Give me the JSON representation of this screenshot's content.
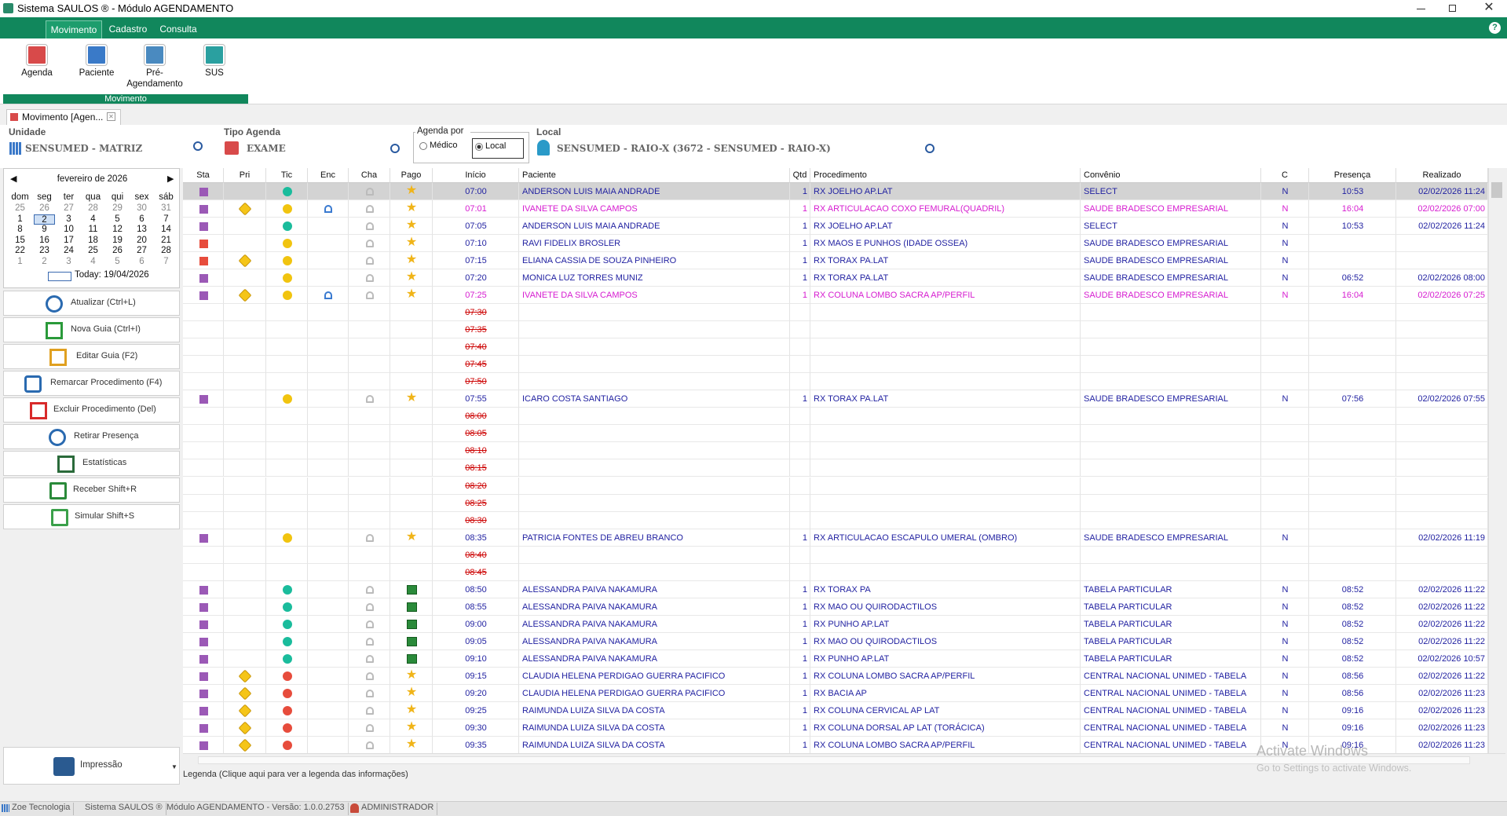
{
  "window": {
    "title": "Sistema SAULOS ® - Módulo AGENDAMENTO"
  },
  "menu": {
    "tabs": [
      "Movimento",
      "Cadastro",
      "Consulta"
    ],
    "selected": 0
  },
  "ribbon": {
    "buttons": [
      "Agenda",
      "Paciente",
      "Pré-Agendamento",
      "SUS"
    ],
    "group": "Movimento"
  },
  "tab": "Movimento [Agen...",
  "filters": {
    "unit_label": "Unidade",
    "unit": "SENSUMED - MATRIZ",
    "type_label": "Tipo Agenda",
    "type": "EXAME",
    "by_label": "Agenda por",
    "by_options": [
      "Médico",
      "Local"
    ],
    "by_selected": 1,
    "local_label": "Local",
    "local": "SENSUMED - RAIO-X (3672 - SENSUMED - RAIO-X)"
  },
  "calendar": {
    "month": "fevereiro de 2026",
    "weekdays": [
      "dom",
      "seg",
      "ter",
      "qua",
      "qui",
      "sex",
      "sáb"
    ],
    "weeks": [
      [
        25,
        26,
        27,
        28,
        29,
        30,
        31
      ],
      [
        1,
        2,
        3,
        4,
        5,
        6,
        7
      ],
      [
        8,
        9,
        10,
        11,
        12,
        13,
        14
      ],
      [
        15,
        16,
        17,
        18,
        19,
        20,
        21
      ],
      [
        22,
        23,
        24,
        25,
        26,
        27,
        28
      ],
      [
        1,
        2,
        3,
        4,
        5,
        6,
        7
      ]
    ],
    "selected": 2,
    "today": "Today: 19/04/2026"
  },
  "actions": [
    "Atualizar (Ctrl+L)",
    "Nova Guia (Ctrl+I)",
    "Editar Guia (F2)",
    "Remarcar Procedimento (F4)",
    "Excluir Procedimento (Del)",
    "Retirar Presença",
    "Estatísticas",
    "Receber Shift+R",
    "Simular Shift+S"
  ],
  "print": "Impressão",
  "grid": {
    "columns": [
      "Sta",
      "Pri",
      "Tic",
      "Enc",
      "Cha",
      "Pago",
      "Início",
      "Paciente",
      "Qtd",
      "Procedimento",
      "Convênio",
      "C",
      "Presença",
      "Realizado"
    ],
    "selected_row": 0,
    "rows": [
      {
        "start": "07:00",
        "patient": "ANDERSON LUIS MAIA ANDRADE",
        "qty": 1,
        "procedure": "RX JOELHO AP.LAT",
        "insurance": "SELECT",
        "c": "N",
        "presence": "10:53",
        "done": "02/02/2026 11:24",
        "sta": "#9b59b6",
        "tic": "#1abc9c",
        "paid": "star",
        "color": "#1f1fa0"
      },
      {
        "start": "07:01",
        "patient": "IVANETE DA SILVA CAMPOS",
        "qty": 1,
        "procedure": "RX ARTICULACAO COXO FEMURAL(QUADRIL)",
        "insurance": "SAUDE BRADESCO EMPRESARIAL",
        "c": "N",
        "presence": "16:04",
        "done": "02/02/2026 07:00",
        "sta": "#9b59b6",
        "pri": true,
        "tic": "#f1c40f",
        "enc": true,
        "paid": "star",
        "color": "#d61cd0"
      },
      {
        "start": "07:05",
        "patient": "ANDERSON LUIS MAIA ANDRADE",
        "qty": 1,
        "procedure": "RX JOELHO AP.LAT",
        "insurance": "SELECT",
        "c": "N",
        "presence": "10:53",
        "done": "02/02/2026 11:24",
        "sta": "#9b59b6",
        "tic": "#1abc9c",
        "paid": "star",
        "color": "#1f1fa0"
      },
      {
        "start": "07:10",
        "patient": "RAVI FIDELIX BROSLER",
        "qty": 1,
        "procedure": "RX MAOS E PUNHOS (IDADE OSSEA)",
        "insurance": "SAUDE BRADESCO EMPRESARIAL",
        "c": "N",
        "sta": "#e74c3c",
        "tic": "#f1c40f",
        "paid": "star",
        "color": "#1f1fa0"
      },
      {
        "start": "07:15",
        "patient": "ELIANA CASSIA DE SOUZA PINHEIRO",
        "qty": 1,
        "procedure": "RX TORAX  PA.LAT",
        "insurance": "SAUDE BRADESCO EMPRESARIAL",
        "c": "N",
        "sta": "#e74c3c",
        "pri": true,
        "tic": "#f1c40f",
        "paid": "star",
        "color": "#1f1fa0"
      },
      {
        "start": "07:20",
        "patient": "MONICA LUZ TORRES MUNIZ",
        "qty": 1,
        "procedure": "RX TORAX  PA.LAT",
        "insurance": "SAUDE BRADESCO EMPRESARIAL",
        "c": "N",
        "presence": "06:52",
        "done": "02/02/2026 08:00",
        "sta": "#9b59b6",
        "tic": "#f1c40f",
        "paid": "star",
        "color": "#1f1fa0"
      },
      {
        "start": "07:25",
        "patient": "IVANETE DA SILVA CAMPOS",
        "qty": 1,
        "procedure": "RX COLUNA LOMBO SACRA AP/PERFIL",
        "insurance": "SAUDE BRADESCO EMPRESARIAL",
        "c": "N",
        "presence": "16:04",
        "done": "02/02/2026 07:25",
        "sta": "#9b59b6",
        "pri": true,
        "tic": "#f1c40f",
        "enc": true,
        "paid": "star",
        "color": "#d61cd0"
      },
      {
        "start": "07:30",
        "color": "#cc0000"
      },
      {
        "start": "07:35",
        "color": "#cc0000"
      },
      {
        "start": "07:40",
        "color": "#cc0000"
      },
      {
        "start": "07:45",
        "color": "#cc0000"
      },
      {
        "start": "07:50",
        "color": "#cc0000"
      },
      {
        "start": "07:55",
        "patient": "ICARO COSTA SANTIAGO",
        "qty": 1,
        "procedure": "RX TORAX  PA.LAT",
        "insurance": "SAUDE BRADESCO EMPRESARIAL",
        "c": "N",
        "presence": "07:56",
        "done": "02/02/2026 07:55",
        "sta": "#9b59b6",
        "tic": "#f1c40f",
        "paid": "star",
        "color": "#1f1fa0"
      },
      {
        "start": "08:00",
        "color": "#cc0000"
      },
      {
        "start": "08:05",
        "color": "#cc0000"
      },
      {
        "start": "08:10",
        "color": "#cc0000"
      },
      {
        "start": "08:15",
        "color": "#cc0000"
      },
      {
        "start": "08:20",
        "color": "#cc0000"
      },
      {
        "start": "08:25",
        "color": "#cc0000"
      },
      {
        "start": "08:30",
        "color": "#cc0000"
      },
      {
        "start": "08:35",
        "patient": "PATRICIA FONTES DE ABREU BRANCO",
        "qty": 1,
        "procedure": "RX ARTICULACAO ESCAPULO UMERAL (OMBRO)",
        "insurance": "SAUDE BRADESCO EMPRESARIAL",
        "c": "N",
        "done": "02/02/2026 11:19",
        "sta": "#9b59b6",
        "tic": "#f1c40f",
        "paid": "star",
        "color": "#1f1fa0"
      },
      {
        "start": "08:40",
        "color": "#cc0000"
      },
      {
        "start": "08:45",
        "color": "#cc0000"
      },
      {
        "start": "08:50",
        "patient": "ALESSANDRA PAIVA NAKAMURA",
        "qty": 1,
        "procedure": "RX TORAX PA",
        "insurance": "TABELA PARTICULAR",
        "c": "N",
        "presence": "08:52",
        "done": "02/02/2026 11:22",
        "sta": "#9b59b6",
        "tic": "#1abc9c",
        "paid": "cash",
        "color": "#1f1fa0"
      },
      {
        "start": "08:55",
        "patient": "ALESSANDRA PAIVA NAKAMURA",
        "qty": 1,
        "procedure": "RX MAO OU QUIRODACTILOS",
        "insurance": "TABELA PARTICULAR",
        "c": "N",
        "presence": "08:52",
        "done": "02/02/2026 11:22",
        "sta": "#9b59b6",
        "tic": "#1abc9c",
        "paid": "cash",
        "color": "#1f1fa0"
      },
      {
        "start": "09:00",
        "patient": "ALESSANDRA PAIVA NAKAMURA",
        "qty": 1,
        "procedure": "RX PUNHO AP.LAT",
        "insurance": "TABELA PARTICULAR",
        "c": "N",
        "presence": "08:52",
        "done": "02/02/2026 11:22",
        "sta": "#9b59b6",
        "tic": "#1abc9c",
        "paid": "cash",
        "color": "#1f1fa0"
      },
      {
        "start": "09:05",
        "patient": "ALESSANDRA PAIVA NAKAMURA",
        "qty": 1,
        "procedure": "RX MAO OU QUIRODACTILOS",
        "insurance": "TABELA PARTICULAR",
        "c": "N",
        "presence": "08:52",
        "done": "02/02/2026 11:22",
        "sta": "#9b59b6",
        "tic": "#1abc9c",
        "paid": "cash",
        "color": "#1f1fa0"
      },
      {
        "start": "09:10",
        "patient": "ALESSANDRA PAIVA NAKAMURA",
        "qty": 1,
        "procedure": "RX PUNHO AP.LAT",
        "insurance": "TABELA PARTICULAR",
        "c": "N",
        "presence": "08:52",
        "done": "02/02/2026 10:57",
        "sta": "#9b59b6",
        "tic": "#1abc9c",
        "paid": "cash",
        "color": "#1f1fa0"
      },
      {
        "start": "09:15",
        "patient": "CLAUDIA HELENA PERDIGAO GUERRA PACIFICO",
        "qty": 1,
        "procedure": "RX COLUNA LOMBO SACRA AP/PERFIL",
        "insurance": "CENTRAL NACIONAL UNIMED - TABELA",
        "c": "N",
        "presence": "08:56",
        "done": "02/02/2026 11:22",
        "sta": "#9b59b6",
        "pri": true,
        "tic": "#e74c3c",
        "paid": "star",
        "color": "#1f1fa0"
      },
      {
        "start": "09:20",
        "patient": "CLAUDIA HELENA PERDIGAO GUERRA PACIFICO",
        "qty": 1,
        "procedure": "RX BACIA AP",
        "insurance": "CENTRAL NACIONAL UNIMED - TABELA",
        "c": "N",
        "presence": "08:56",
        "done": "02/02/2026 11:23",
        "sta": "#9b59b6",
        "pri": true,
        "tic": "#e74c3c",
        "paid": "star",
        "color": "#1f1fa0"
      },
      {
        "start": "09:25",
        "patient": "RAIMUNDA LUIZA SILVA DA COSTA",
        "qty": 1,
        "procedure": "RX COLUNA CERVICAL AP LAT",
        "insurance": "CENTRAL NACIONAL UNIMED - TABELA",
        "c": "N",
        "presence": "09:16",
        "done": "02/02/2026 11:23",
        "sta": "#9b59b6",
        "pri": true,
        "tic": "#e74c3c",
        "paid": "star",
        "color": "#1f1fa0"
      },
      {
        "start": "09:30",
        "patient": "RAIMUNDA LUIZA SILVA DA COSTA",
        "qty": 1,
        "procedure": "RX COLUNA DORSAL AP LAT (TORÁCICA)",
        "insurance": "CENTRAL NACIONAL UNIMED - TABELA",
        "c": "N",
        "presence": "09:16",
        "done": "02/02/2026 11:23",
        "sta": "#9b59b6",
        "pri": true,
        "tic": "#e74c3c",
        "paid": "star",
        "color": "#1f1fa0"
      },
      {
        "start": "09:35",
        "patient": "RAIMUNDA LUIZA SILVA DA COSTA",
        "qty": 1,
        "procedure": "RX COLUNA LOMBO SACRA AP/PERFIL",
        "insurance": "CENTRAL NACIONAL UNIMED - TABELA",
        "c": "N",
        "presence": "09:16",
        "done": "02/02/2026 11:23",
        "sta": "#9b59b6",
        "pri": true,
        "tic": "#e74c3c",
        "paid": "star",
        "color": "#1f1fa0"
      }
    ]
  },
  "legend": "Legenda (Clique aqui para ver a legenda das informações)",
  "watermark": [
    "Activate Windows",
    "Go to Settings to activate Windows."
  ],
  "status": [
    "Zoe Tecnologia",
    "Sistema SAULOS ®",
    "Módulo AGENDAMENTO - Versão: 1.0.0.2753",
    "ADMINISTRADOR"
  ]
}
